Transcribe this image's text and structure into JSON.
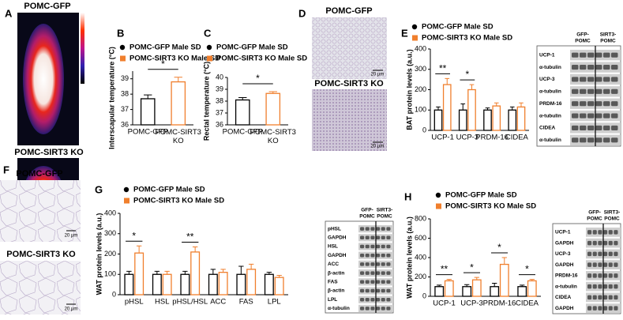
{
  "figure": {
    "A": {
      "label": "A",
      "titles": [
        "POMC-GFP",
        "POMC-SIRT3 KO"
      ]
    },
    "D": {
      "label": "D",
      "titles": [
        "POMC-GFP",
        "POMC-SIRT3 KO"
      ],
      "scale_bars": [
        "20 µm",
        "20 µm"
      ]
    },
    "F": {
      "label": "F",
      "titles": [
        "POMC-GFP",
        "POMC-SIRT3 KO"
      ],
      "scale_bars": [
        "20 µm",
        "20 µm"
      ]
    },
    "blots": [
      {
        "headers": [
          [
            "GFP-",
            "POMC"
          ],
          [
            "SIRT3-",
            "POMC"
          ]
        ],
        "rows": [
          "UCP-1",
          "α-tubulin",
          "UCP-3",
          "α-tubulin",
          "PRDM-16",
          "α-tubulin",
          "CIDEA",
          "α-tubulin"
        ]
      },
      {
        "headers": [
          [
            "GFP-",
            "POMC"
          ],
          [
            "SIRT3-",
            "POMC"
          ]
        ],
        "rows": [
          "pHSL",
          "GAPDH",
          "HSL",
          "GAPDH",
          "ACC",
          "β-actin",
          "FAS",
          "β-actin",
          "LPL",
          "α-tubulin"
        ]
      },
      {
        "headers": [
          [
            "GFP-",
            "POMC"
          ],
          [
            "SIRT3-",
            "POMC"
          ]
        ],
        "rows": [
          "UCP-1",
          "GAPDH",
          "UCP-3",
          "GAPDH",
          "PRDM-16",
          "α-tubulin",
          "CIDEA",
          "GAPDH"
        ]
      }
    ]
  },
  "chart_data": [
    {
      "type": "bar",
      "panel": "B",
      "y_label": "Interscapular temperature (°C)",
      "categories": [
        "POMC-GFP",
        "POMC-SIRT3 KO"
      ],
      "series": [
        {
          "name": "POMC-GFP Male SD",
          "color": "#000000",
          "values": [
            37.7,
            null
          ],
          "errors": [
            0.25,
            null
          ]
        },
        {
          "name": "POMC-SIRT3 KO Male SD",
          "color": "#f07f2d",
          "values": [
            null,
            38.8
          ],
          "errors": [
            null,
            0.3
          ]
        }
      ],
      "ylim": [
        36,
        39.5
      ],
      "yticks": [
        36,
        37,
        38,
        39
      ],
      "significance": "*"
    },
    {
      "type": "bar",
      "panel": "C",
      "y_label": "Rectal temperature (°C)",
      "categories": [
        "POMC-GFP",
        "POMC-SIRT3 KO"
      ],
      "series": [
        {
          "name": "POMC-GFP Male SD",
          "color": "#000000",
          "values": [
            38.1,
            null
          ],
          "errors": [
            0.2,
            null
          ]
        },
        {
          "name": "POMC-SIRT3 KO Male SD",
          "color": "#f07f2d",
          "values": [
            null,
            38.65
          ],
          "errors": [
            null,
            0.15
          ]
        }
      ],
      "ylim": [
        36,
        40
      ],
      "yticks": [
        36,
        37,
        38,
        39,
        40
      ],
      "significance": "*"
    },
    {
      "type": "bar",
      "panel": "E",
      "y_label": "BAT protein levels (a.u.)",
      "categories": [
        "UCP-1",
        "UCP-3",
        "PRDM-16",
        "CIDEA"
      ],
      "series": [
        {
          "name": "POMC-GFP Male SD",
          "color": "#000000",
          "values": [
            100,
            100,
            100,
            100
          ],
          "errors": [
            15,
            30,
            10,
            15
          ]
        },
        {
          "name": "POMC-SIRT3 KO Male SD",
          "color": "#f07f2d",
          "values": [
            225,
            200,
            120,
            115
          ],
          "errors": [
            30,
            25,
            15,
            20
          ]
        }
      ],
      "ylim": [
        0,
        400
      ],
      "yticks": [
        0,
        100,
        200,
        300,
        400
      ],
      "significance": [
        "**",
        "*",
        null,
        null
      ]
    },
    {
      "type": "bar",
      "panel": "G",
      "y_label": "WAT protein levels (a.u.)",
      "categories": [
        "pHSL",
        "HSL",
        "pHSL/HSL",
        "ACC",
        "FAS",
        "LPL"
      ],
      "series": [
        {
          "name": "POMC-GFP Male SD",
          "color": "#000000",
          "values": [
            100,
            100,
            100,
            100,
            100,
            100
          ],
          "errors": [
            15,
            15,
            15,
            25,
            40,
            10
          ]
        },
        {
          "name": "POMC-SIRT3 KO Male SD",
          "color": "#f07f2d",
          "values": [
            205,
            100,
            210,
            110,
            125,
            85
          ],
          "errors": [
            35,
            15,
            25,
            15,
            25,
            10
          ]
        }
      ],
      "ylim": [
        0,
        400
      ],
      "yticks": [
        0,
        100,
        200,
        300,
        400
      ],
      "significance": [
        "*",
        null,
        "**",
        null,
        null,
        null
      ]
    },
    {
      "type": "bar",
      "panel": "H",
      "y_label": "WAT protein levels (a.u.)",
      "categories": [
        "UCP-1",
        "UCP-3",
        "PRDM-16",
        "CIDEA"
      ],
      "series": [
        {
          "name": "POMC-GFP Male SD",
          "color": "#000000",
          "values": [
            100,
            100,
            100,
            100
          ],
          "errors": [
            15,
            20,
            35,
            15
          ]
        },
        {
          "name": "POMC-SIRT3 KO Male SD",
          "color": "#f07f2d",
          "values": [
            160,
            170,
            330,
            160
          ],
          "errors": [
            15,
            25,
            70,
            15
          ]
        }
      ],
      "ylim": [
        0,
        800
      ],
      "yticks": [
        0,
        200,
        400,
        600,
        800
      ],
      "significance": [
        "**",
        "*",
        "*",
        "*"
      ]
    }
  ]
}
